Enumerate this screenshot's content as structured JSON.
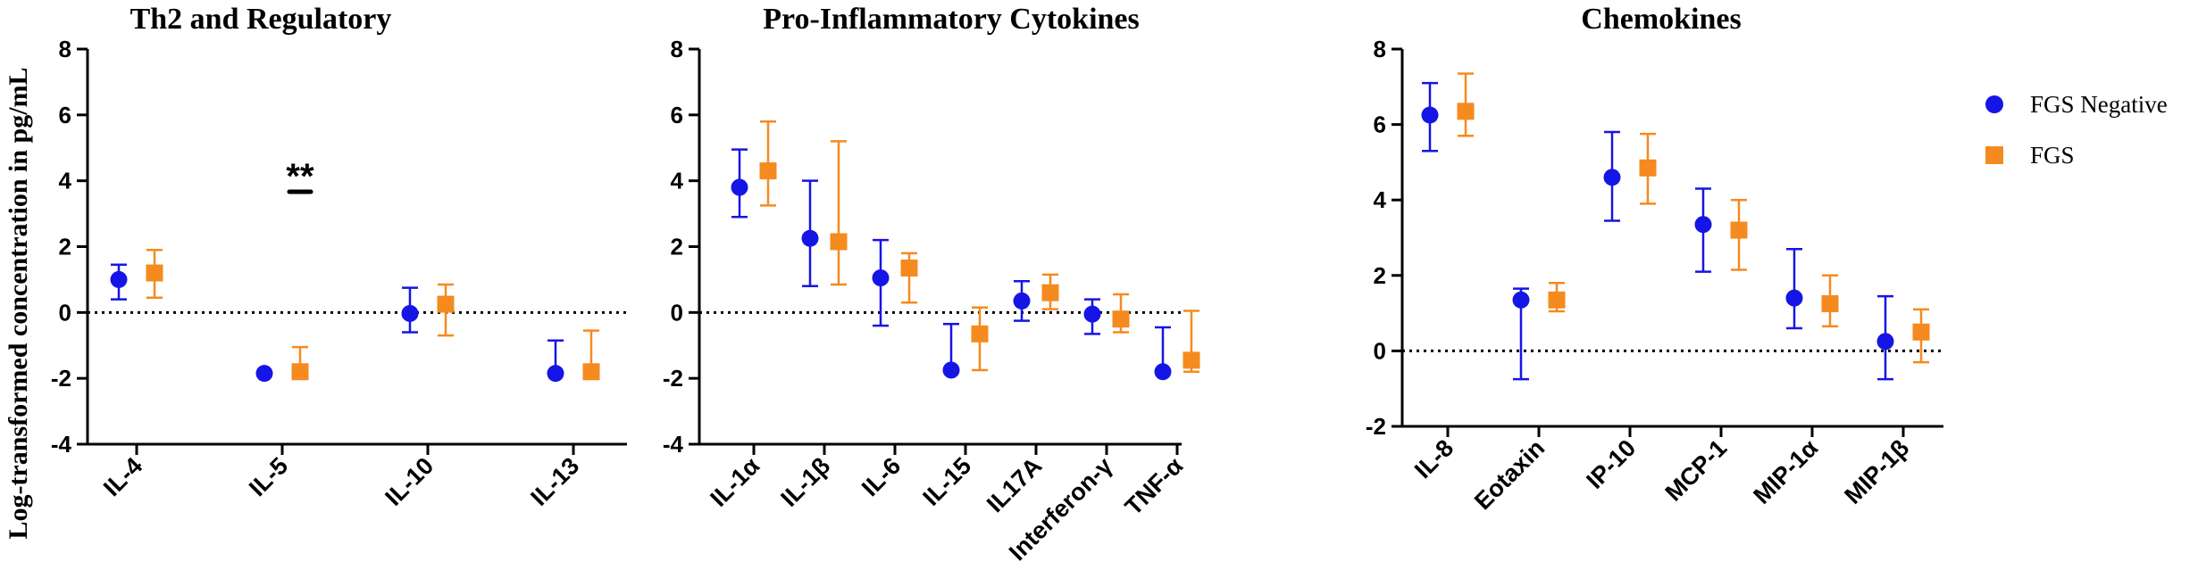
{
  "colors": {
    "negative": "#1515E6",
    "fgs": "#F58A1F",
    "axis": "#000000"
  },
  "ylabel": "Log-transformed concentration in pg/mL",
  "legend": [
    {
      "label": "FGS Negative",
      "marker": "circle",
      "color": "#1515E6"
    },
    {
      "label": "FGS",
      "marker": "square",
      "color": "#F58A1F"
    }
  ],
  "chart_data": [
    {
      "type": "scatter",
      "title": "Th2 and Regulatory",
      "ylim": [
        -4,
        8
      ],
      "yticks": [
        -4,
        -2,
        0,
        2,
        4,
        6,
        8
      ],
      "reference_line": 0,
      "categories": [
        "IL-4",
        "IL-5",
        "IL-10",
        "IL-13"
      ],
      "series": [
        {
          "name": "FGS Negative",
          "values": [
            1.0,
            -1.85,
            -0.03,
            -1.85
          ],
          "lower": [
            0.4,
            null,
            -0.6,
            -1.85
          ],
          "upper": [
            1.45,
            null,
            0.75,
            -0.85
          ]
        },
        {
          "name": "FGS",
          "values": [
            1.2,
            -1.8,
            0.25,
            -1.8
          ],
          "lower": [
            0.45,
            -1.8,
            -0.7,
            -1.8
          ],
          "upper": [
            1.9,
            -1.05,
            0.85,
            -0.55
          ]
        }
      ],
      "annotations": [
        {
          "text": "**",
          "category": "IL-5"
        }
      ]
    },
    {
      "type": "scatter",
      "title": "Pro-Inflammatory Cytokines",
      "ylim": [
        -4,
        8
      ],
      "yticks": [
        -4,
        -2,
        0,
        2,
        4,
        6,
        8
      ],
      "reference_line": 0,
      "categories": [
        "IL-1α",
        "IL-1β",
        "IL-6",
        "IL-15",
        "IL17A",
        "Interferon-γ",
        "TNF-α"
      ],
      "series": [
        {
          "name": "FGS Negative",
          "values": [
            3.8,
            2.25,
            1.05,
            -1.75,
            0.35,
            -0.05,
            -1.8
          ],
          "lower": [
            2.9,
            0.8,
            -0.4,
            -1.75,
            -0.25,
            -0.65,
            -1.8
          ],
          "upper": [
            4.95,
            4.0,
            2.2,
            -0.35,
            0.95,
            0.4,
            -0.45
          ]
        },
        {
          "name": "FGS",
          "values": [
            4.3,
            2.15,
            1.35,
            -0.65,
            0.6,
            -0.2,
            -1.45
          ],
          "lower": [
            3.25,
            0.85,
            0.3,
            -1.75,
            0.1,
            -0.6,
            -1.8
          ],
          "upper": [
            5.8,
            5.2,
            1.8,
            0.15,
            1.15,
            0.55,
            0.05
          ]
        }
      ]
    },
    {
      "type": "scatter",
      "title": "Chemokines",
      "ylim": [
        -2,
        8
      ],
      "yticks": [
        -2,
        0,
        2,
        4,
        6,
        8
      ],
      "reference_line": 0,
      "categories": [
        "IL-8",
        "Eotaxin",
        "IP-10",
        "MCP-1",
        "MIP-1α",
        "MIP-1β"
      ],
      "series": [
        {
          "name": "FGS Negative",
          "values": [
            6.25,
            1.35,
            4.6,
            3.35,
            1.4,
            0.25
          ],
          "lower": [
            5.3,
            -0.75,
            3.45,
            2.1,
            0.6,
            -0.75
          ],
          "upper": [
            7.1,
            1.65,
            5.8,
            4.3,
            2.7,
            1.45
          ]
        },
        {
          "name": "FGS",
          "values": [
            6.35,
            1.35,
            4.85,
            3.2,
            1.25,
            0.5
          ],
          "lower": [
            5.7,
            1.05,
            3.9,
            2.15,
            0.65,
            -0.3
          ],
          "upper": [
            7.35,
            1.8,
            5.75,
            4.0,
            2.0,
            1.1
          ]
        }
      ]
    }
  ]
}
